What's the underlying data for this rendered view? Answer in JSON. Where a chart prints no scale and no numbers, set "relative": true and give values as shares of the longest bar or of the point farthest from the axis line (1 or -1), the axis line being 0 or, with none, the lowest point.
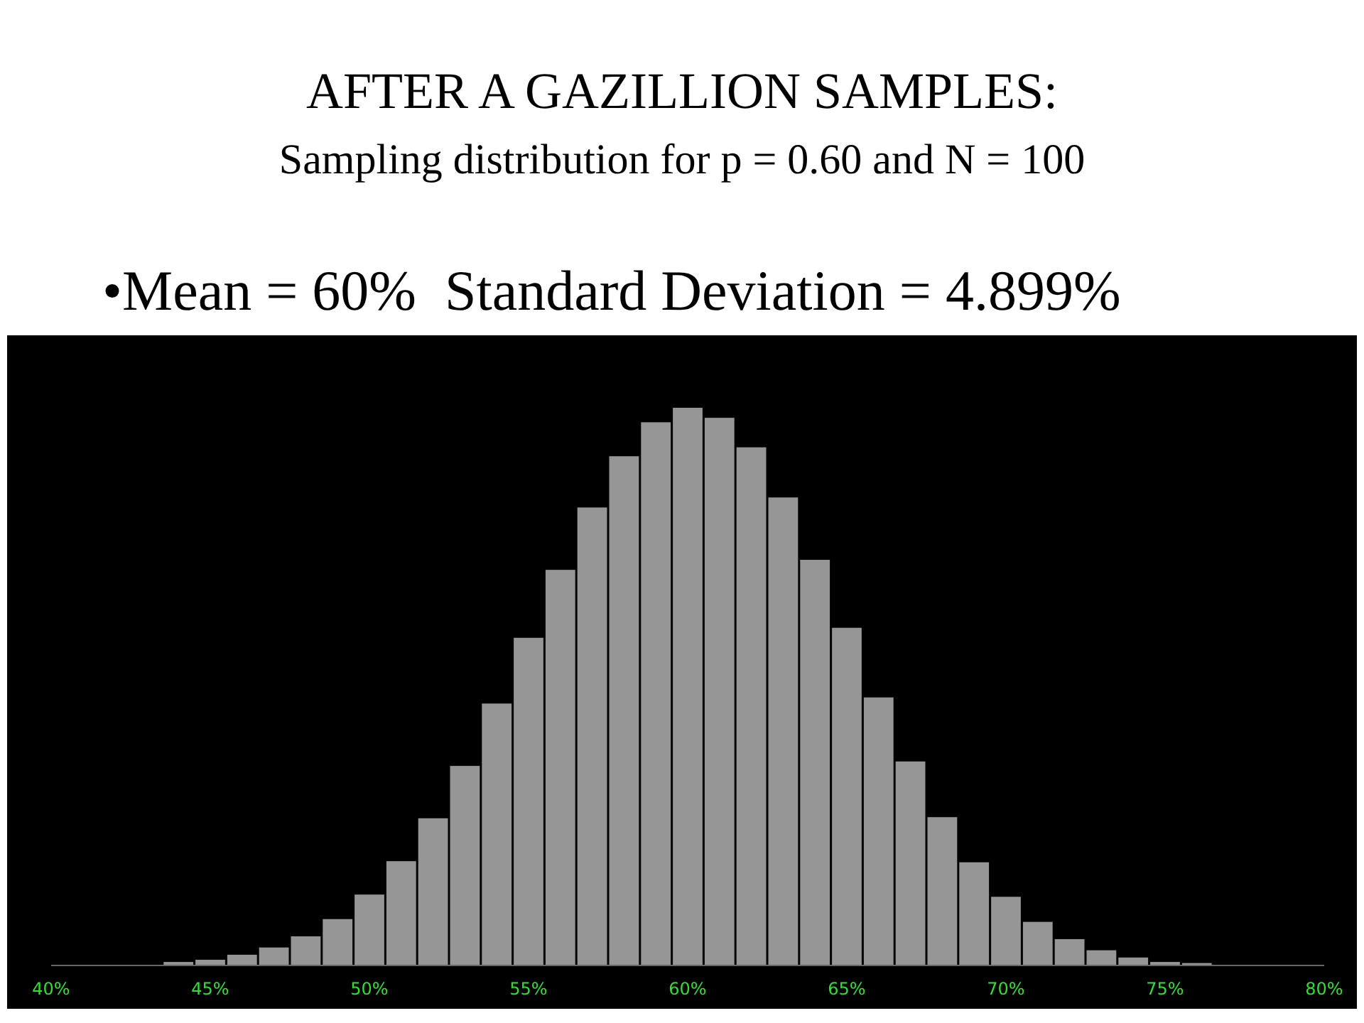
{
  "chart_data": {
    "type": "bar",
    "title": "AFTER A GAZILLION SAMPLES:",
    "subtitle": "Sampling distribution for p = 0.60 and N = 100",
    "annotations": [
      "•Mean = 60%  Standard Deviation = 4.899%"
    ],
    "relative": true,
    "color": "#969696",
    "x": [
      44,
      45,
      46,
      47,
      48,
      49,
      50,
      51,
      52,
      53,
      54,
      55,
      56,
      57,
      58,
      59,
      60,
      61,
      62,
      63,
      64,
      65,
      66,
      67,
      68,
      69,
      70,
      71,
      72,
      73,
      74,
      75,
      76
    ],
    "values": [
      0.005,
      0.009,
      0.018,
      0.031,
      0.051,
      0.082,
      0.126,
      0.186,
      0.263,
      0.357,
      0.469,
      0.587,
      0.709,
      0.821,
      0.913,
      0.974,
      1,
      0.982,
      0.929,
      0.839,
      0.727,
      0.605,
      0.48,
      0.365,
      0.265,
      0.184,
      0.122,
      0.077,
      0.046,
      0.026,
      0.013,
      0.005,
      0.003
    ],
    "xlim": [
      40,
      80
    ],
    "xticks": [
      {
        "value": 40,
        "label": "40%"
      },
      {
        "value": 45,
        "label": "45%"
      },
      {
        "value": 50,
        "label": "50%"
      },
      {
        "value": 55,
        "label": "55%"
      },
      {
        "value": 60,
        "label": "60%"
      },
      {
        "value": 65,
        "label": "65%"
      },
      {
        "value": 70,
        "label": "70%"
      },
      {
        "value": 75,
        "label": "75%"
      },
      {
        "value": 80,
        "label": "80%"
      }
    ]
  }
}
